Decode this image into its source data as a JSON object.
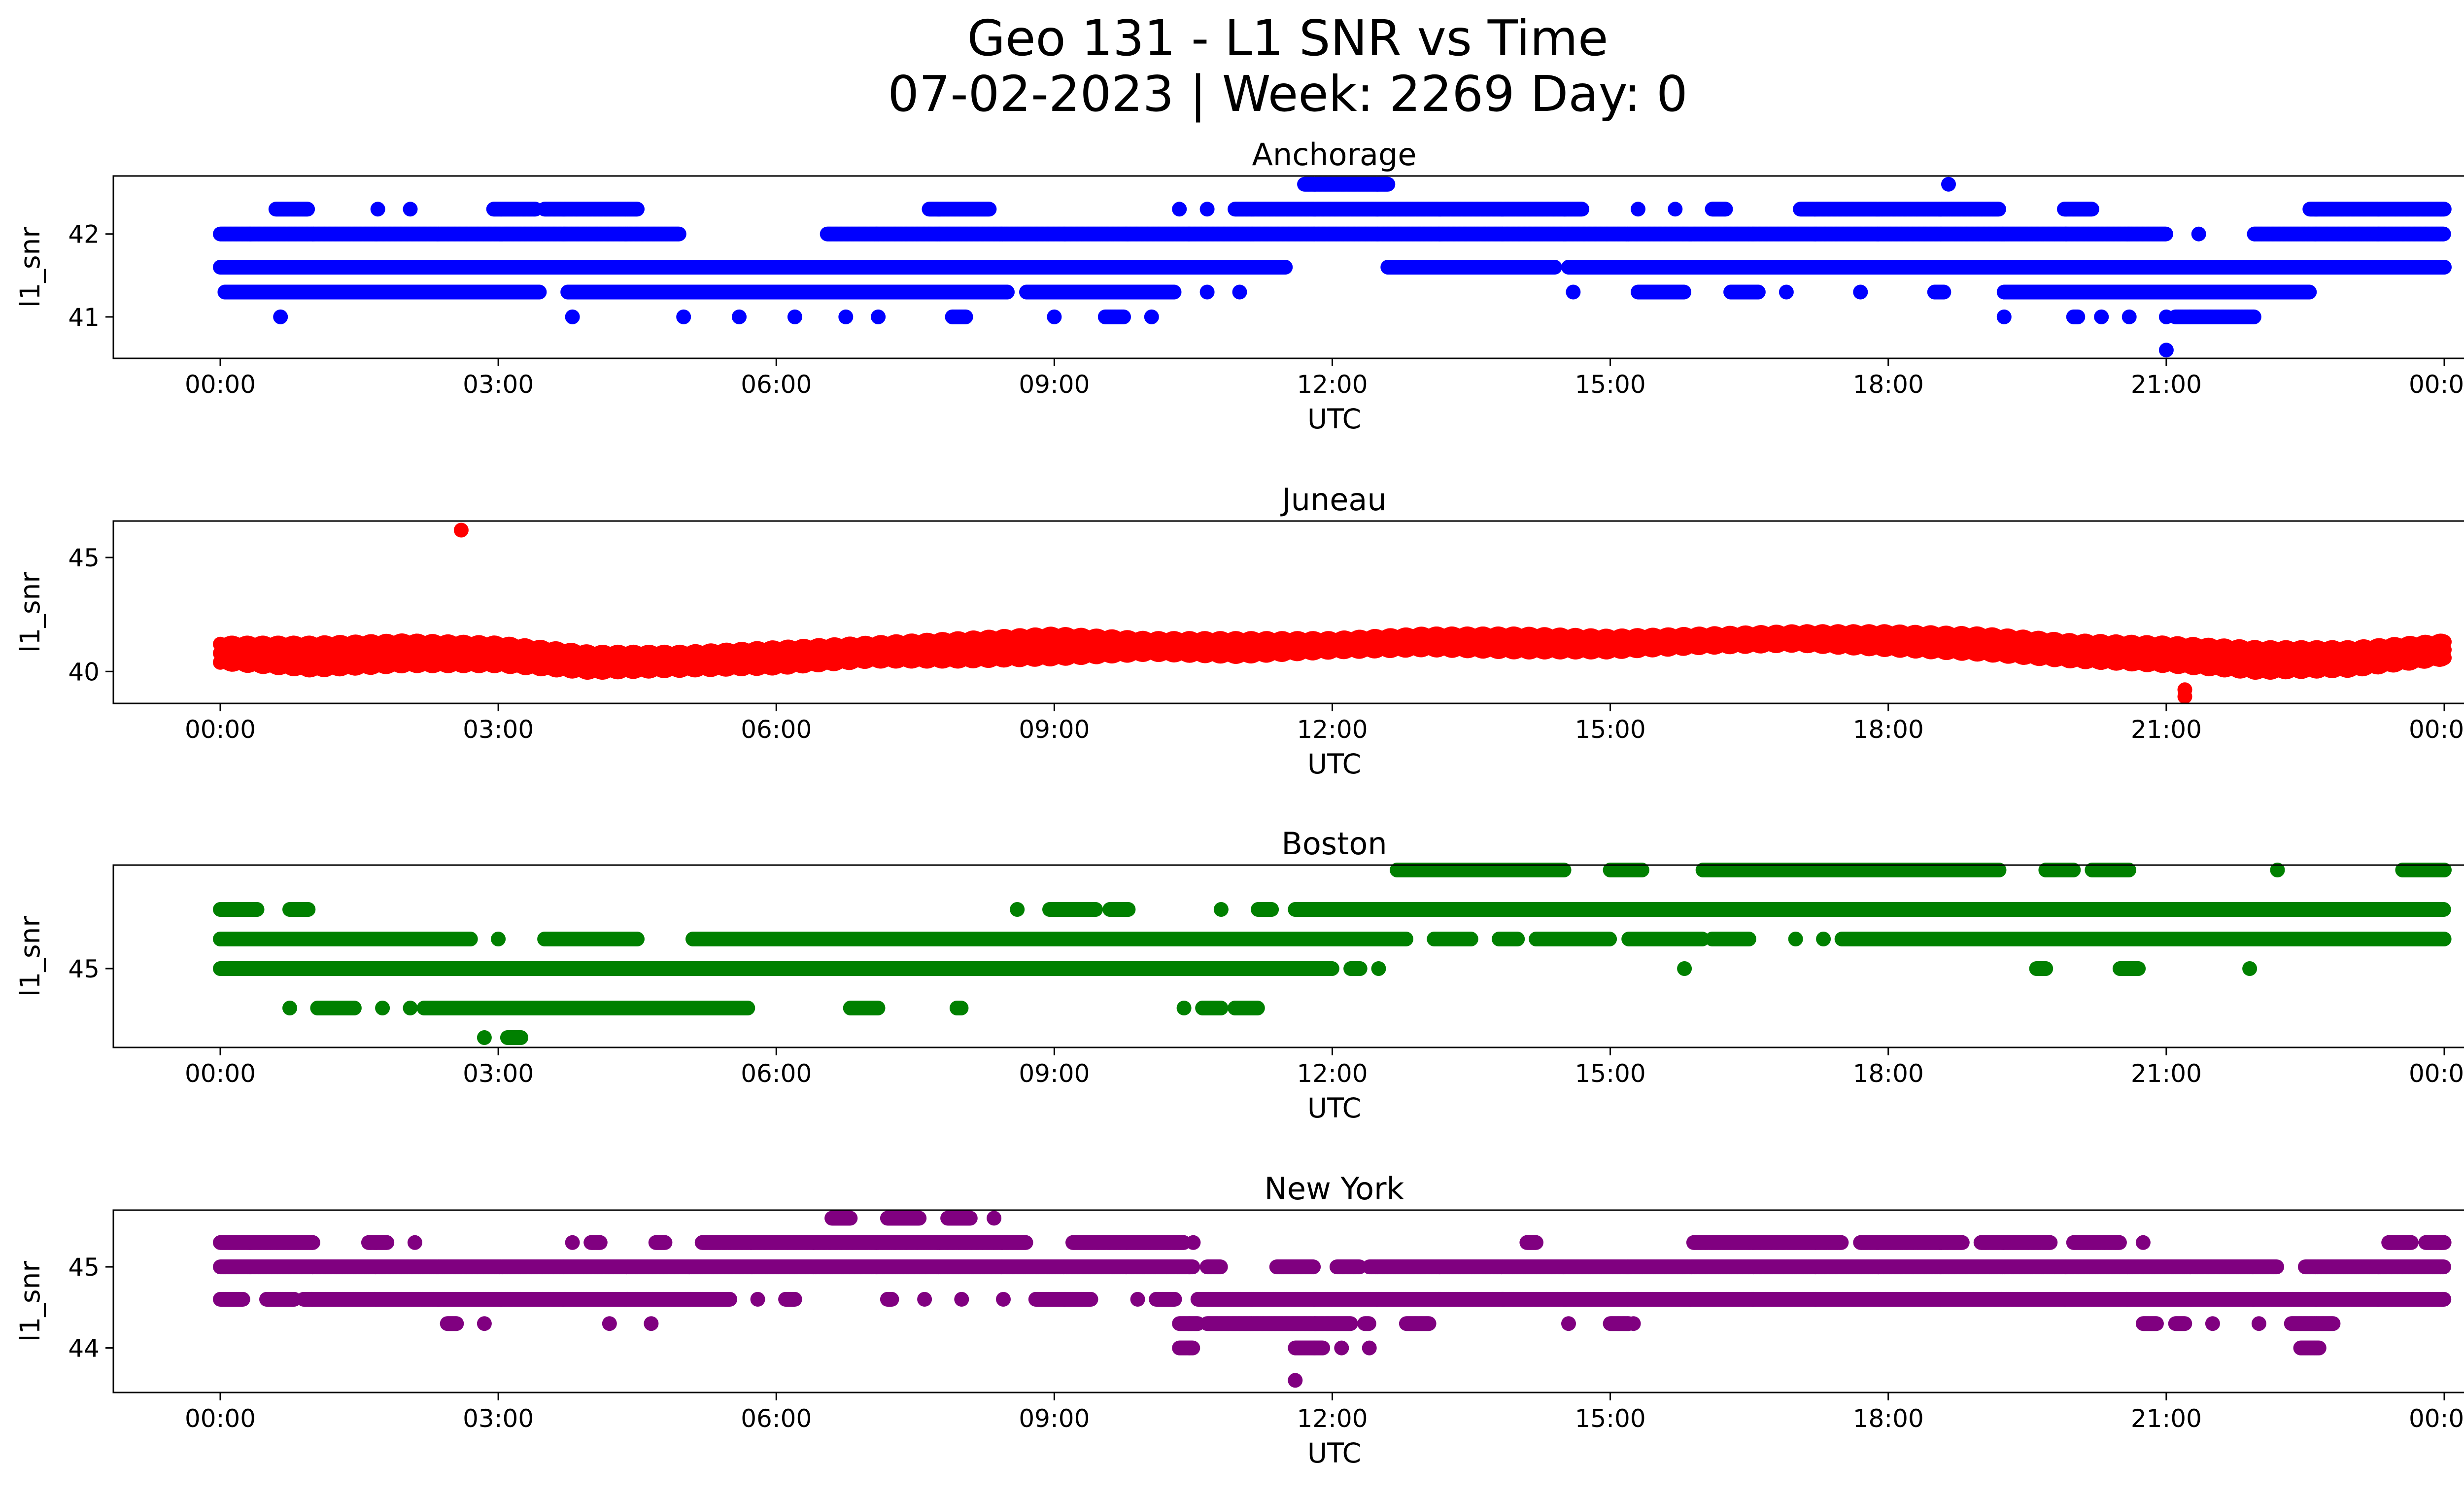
{
  "figure": {
    "title_line1": "Geo 131 - L1 SNR vs Time",
    "title_line2": "07-02-2023 | Week: 2269 Day: 0"
  },
  "chart_data": [
    {
      "type": "scatter",
      "title": "Anchorage",
      "color": "#0000ff",
      "xlabel": "UTC",
      "ylabel": "l1_snr",
      "xlim": [
        "00:00",
        "24:00"
      ],
      "x_tick_labels": [
        "00:00",
        "03:00",
        "06:00",
        "09:00",
        "12:00",
        "15:00",
        "18:00",
        "21:00",
        "00:00"
      ],
      "y_ticks": [
        41,
        42
      ],
      "ylim": [
        40.5,
        42.7
      ],
      "levels": [
        {
          "y": 42.3,
          "segments": [
            [
              0.6,
              0.95
            ],
            [
              1.7,
              1.7
            ],
            [
              2.05,
              2.05
            ],
            [
              2.95,
              3.4
            ],
            [
              3.5,
              4.5
            ],
            [
              7.65,
              8.3
            ],
            [
              10.35,
              10.35
            ],
            [
              10.65,
              10.65
            ],
            [
              10.95,
              14.7
            ],
            [
              15.3,
              15.3
            ],
            [
              15.7,
              15.7
            ],
            [
              16.1,
              16.25
            ],
            [
              17.05,
              19.2
            ],
            [
              19.9,
              20.2
            ],
            [
              22.55,
              24.0
            ]
          ]
        },
        {
          "y": 42.6,
          "segments": [
            [
              11.7,
              12.6
            ],
            [
              18.65,
              18.65
            ]
          ]
        },
        {
          "y": 42.0,
          "segments": [
            [
              0.0,
              4.95
            ],
            [
              6.55,
              21.0
            ],
            [
              21.35,
              21.35
            ],
            [
              21.95,
              24.0
            ]
          ]
        },
        {
          "y": 41.6,
          "segments": [
            [
              0.0,
              11.5
            ],
            [
              12.6,
              14.4
            ],
            [
              14.55,
              24.0
            ]
          ]
        },
        {
          "y": 41.3,
          "segments": [
            [
              0.05,
              3.45
            ],
            [
              3.75,
              8.5
            ],
            [
              8.7,
              10.3
            ],
            [
              10.65,
              10.65
            ],
            [
              11.0,
              11.0
            ],
            [
              14.6,
              14.6
            ],
            [
              15.3,
              15.8
            ],
            [
              16.3,
              16.6
            ],
            [
              16.9,
              16.9
            ],
            [
              17.7,
              17.7
            ],
            [
              18.5,
              18.6
            ],
            [
              19.25,
              22.55
            ]
          ]
        },
        {
          "y": 41.0,
          "segments": [
            [
              0.65,
              0.65
            ],
            [
              3.8,
              3.8
            ],
            [
              5.0,
              5.0
            ],
            [
              5.6,
              5.6
            ],
            [
              6.2,
              6.2
            ],
            [
              6.75,
              6.75
            ],
            [
              7.1,
              7.1
            ],
            [
              7.9,
              8.05
            ],
            [
              9.0,
              9.0
            ],
            [
              9.55,
              9.75
            ],
            [
              10.05,
              10.05
            ],
            [
              19.25,
              19.25
            ],
            [
              20.0,
              20.05
            ],
            [
              20.3,
              20.3
            ],
            [
              20.6,
              20.6
            ],
            [
              21.0,
              21.0
            ],
            [
              21.1,
              21.95
            ]
          ]
        },
        {
          "y": 40.6,
          "segments": [
            [
              21.0,
              21.0
            ]
          ]
        }
      ]
    },
    {
      "type": "scatter",
      "title": "Juneau",
      "color": "#ff0000",
      "xlabel": "UTC",
      "ylabel": "l1_snr",
      "xlim": [
        "00:00",
        "24:00"
      ],
      "x_tick_labels": [
        "00:00",
        "03:00",
        "06:00",
        "09:00",
        "12:00",
        "15:00",
        "18:00",
        "21:00",
        "00:00"
      ],
      "y_ticks": [
        40,
        45
      ],
      "ylim": [
        38.6,
        46.6
      ],
      "bands": [
        {
          "t": [
            0,
            1,
            2,
            3,
            4,
            5,
            6,
            7,
            8,
            9,
            10,
            11,
            12,
            13,
            14,
            15,
            16,
            17,
            18,
            19,
            20,
            21,
            22,
            23,
            24
          ],
          "low": [
            40.4,
            40.1,
            40.3,
            40.3,
            40.0,
            40.1,
            40.2,
            40.5,
            40.5,
            40.6,
            40.8,
            40.7,
            40.9,
            41.0,
            40.9,
            40.9,
            41.1,
            41.2,
            41.0,
            40.8,
            40.5,
            40.3,
            40.0,
            40.1,
            40.6
          ],
          "high": [
            41.2,
            41.2,
            41.3,
            41.2,
            40.8,
            40.8,
            41.0,
            41.2,
            41.4,
            41.6,
            41.4,
            41.4,
            41.4,
            41.6,
            41.6,
            41.5,
            41.6,
            41.7,
            41.7,
            41.6,
            41.3,
            41.2,
            41.0,
            41.0,
            41.3
          ]
        }
      ],
      "outliers": [
        {
          "x": 2.6,
          "y": 46.2
        },
        {
          "x": 21.2,
          "y": 39.2
        },
        {
          "x": 21.2,
          "y": 38.9
        }
      ]
    },
    {
      "type": "scatter",
      "title": "Boston",
      "color": "#008000",
      "xlabel": "UTC",
      "ylabel": "l1_snr",
      "xlim": [
        "00:00",
        "24:00"
      ],
      "x_tick_labels": [
        "00:00",
        "03:00",
        "06:00",
        "09:00",
        "12:00",
        "15:00",
        "18:00",
        "21:00",
        "00:00"
      ],
      "y_ticks": [
        45
      ],
      "ylim": [
        44.2,
        46.05
      ],
      "levels": [
        {
          "y": 46.0,
          "segments": [
            [
              12.7,
              14.5
            ],
            [
              15.0,
              15.35
            ],
            [
              16.0,
              19.2
            ],
            [
              19.7,
              20.0
            ],
            [
              20.2,
              20.6
            ],
            [
              22.2,
              22.2
            ],
            [
              23.55,
              24.0
            ]
          ]
        },
        {
          "y": 45.6,
          "segments": [
            [
              0.0,
              0.4
            ],
            [
              0.75,
              0.95
            ],
            [
              8.6,
              8.6
            ],
            [
              8.95,
              9.45
            ],
            [
              9.6,
              9.8
            ],
            [
              10.8,
              10.8
            ],
            [
              11.2,
              11.35
            ],
            [
              11.6,
              24.0
            ]
          ]
        },
        {
          "y": 45.3,
          "segments": [
            [
              0.0,
              2.7
            ],
            [
              3.0,
              3.0
            ],
            [
              3.5,
              4.5
            ],
            [
              5.1,
              12.8
            ],
            [
              13.1,
              13.5
            ],
            [
              13.8,
              14.0
            ],
            [
              14.2,
              15.0
            ],
            [
              15.2,
              16.0
            ],
            [
              16.1,
              16.5
            ],
            [
              17.0,
              17.0
            ],
            [
              17.3,
              17.3
            ],
            [
              17.5,
              24.0
            ]
          ]
        },
        {
          "y": 45.0,
          "segments": [
            [
              0.0,
              12.0
            ],
            [
              12.2,
              12.3
            ],
            [
              12.5,
              12.5
            ],
            [
              15.8,
              15.8
            ],
            [
              19.6,
              19.7
            ],
            [
              20.5,
              20.7
            ],
            [
              21.9,
              21.9
            ]
          ]
        },
        {
          "y": 44.6,
          "segments": [
            [
              0.75,
              0.75
            ],
            [
              1.05,
              1.45
            ],
            [
              1.75,
              1.75
            ],
            [
              2.05,
              2.05
            ],
            [
              2.2,
              5.7
            ],
            [
              6.8,
              7.1
            ],
            [
              7.95,
              8.0
            ],
            [
              10.4,
              10.4
            ],
            [
              10.6,
              10.8
            ],
            [
              10.95,
              11.2
            ]
          ]
        },
        {
          "y": 44.3,
          "segments": [
            [
              2.85,
              2.85
            ],
            [
              3.1,
              3.25
            ]
          ]
        }
      ]
    },
    {
      "type": "scatter",
      "title": "New York",
      "color": "#800080",
      "xlabel": "UTC",
      "ylabel": "l1_snr",
      "xlim": [
        "00:00",
        "24:00"
      ],
      "x_tick_labels": [
        "00:00",
        "03:00",
        "06:00",
        "09:00",
        "12:00",
        "15:00",
        "18:00",
        "21:00",
        "00:00"
      ],
      "y_ticks": [
        44,
        45
      ],
      "ylim": [
        43.45,
        45.7
      ],
      "levels": [
        {
          "y": 45.6,
          "segments": [
            [
              6.6,
              6.8
            ],
            [
              7.2,
              7.55
            ],
            [
              7.85,
              8.1
            ],
            [
              8.35,
              8.35
            ]
          ]
        },
        {
          "y": 45.3,
          "segments": [
            [
              0.0,
              1.0
            ],
            [
              1.6,
              1.8
            ],
            [
              2.1,
              2.1
            ],
            [
              3.8,
              3.8
            ],
            [
              4.0,
              4.1
            ],
            [
              4.7,
              4.8
            ],
            [
              5.2,
              8.7
            ],
            [
              9.2,
              10.4
            ],
            [
              10.5,
              10.5
            ],
            [
              14.1,
              14.2
            ],
            [
              15.9,
              17.5
            ],
            [
              17.7,
              18.8
            ],
            [
              19.0,
              19.75
            ],
            [
              20.0,
              20.5
            ],
            [
              20.75,
              20.75
            ],
            [
              23.4,
              23.65
            ],
            [
              23.8,
              24.0
            ]
          ]
        },
        {
          "y": 45.0,
          "segments": [
            [
              0.0,
              10.5
            ],
            [
              10.65,
              10.8
            ],
            [
              11.4,
              11.8
            ],
            [
              12.05,
              12.3
            ],
            [
              12.4,
              22.2
            ],
            [
              22.5,
              24.0
            ]
          ]
        },
        {
          "y": 44.6,
          "segments": [
            [
              0.0,
              0.25
            ],
            [
              0.5,
              0.8
            ],
            [
              0.9,
              5.5
            ],
            [
              5.8,
              5.8
            ],
            [
              6.1,
              6.2
            ],
            [
              7.2,
              7.25
            ],
            [
              7.6,
              7.6
            ],
            [
              8.0,
              8.0
            ],
            [
              8.45,
              8.45
            ],
            [
              8.8,
              9.4
            ],
            [
              9.9,
              9.9
            ],
            [
              10.1,
              10.3
            ],
            [
              10.55,
              24.0
            ]
          ]
        },
        {
          "y": 44.3,
          "segments": [
            [
              2.45,
              2.55
            ],
            [
              2.85,
              2.85
            ],
            [
              4.2,
              4.2
            ],
            [
              4.65,
              4.65
            ],
            [
              10.35,
              10.55
            ],
            [
              10.65,
              12.2
            ],
            [
              12.35,
              12.4
            ],
            [
              12.8,
              13.05
            ],
            [
              14.55,
              14.55
            ],
            [
              15.0,
              15.2
            ],
            [
              15.25,
              15.25
            ],
            [
              20.75,
              20.9
            ],
            [
              21.1,
              21.2
            ],
            [
              21.5,
              21.5
            ],
            [
              22.0,
              22.0
            ],
            [
              22.35,
              22.8
            ]
          ]
        },
        {
          "y": 44.0,
          "segments": [
            [
              10.35,
              10.5
            ],
            [
              11.6,
              11.9
            ],
            [
              12.1,
              12.1
            ],
            [
              12.4,
              12.4
            ],
            [
              22.45,
              22.65
            ]
          ]
        },
        {
          "y": 43.6,
          "segments": [
            [
              11.6,
              11.6
            ]
          ]
        }
      ]
    }
  ]
}
